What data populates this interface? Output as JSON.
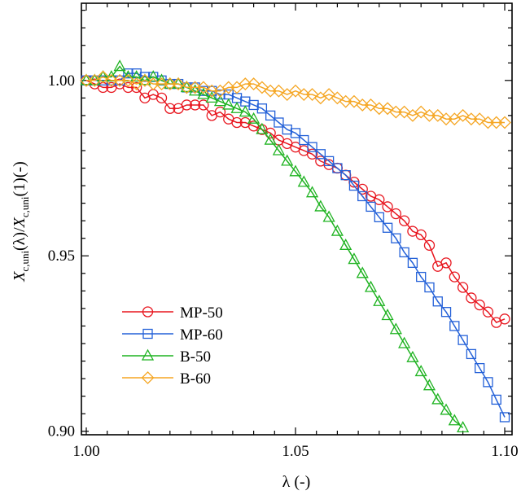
{
  "chart_data": {
    "type": "line",
    "title": "",
    "xlabel": "λ (-)",
    "ylabel": {
      "X1": "X",
      "sub1": "c,uni",
      "mid": "(λ)/",
      "X2": "X",
      "sub2": "c,uni",
      "tail": "(1)(-)"
    },
    "xlim": [
      1.0,
      1.1
    ],
    "ylim": [
      0.899,
      1.022
    ],
    "xticks": [
      {
        "value": 1.0,
        "label": "1.00"
      },
      {
        "value": 1.05,
        "label": "1.05"
      },
      {
        "value": 1.1,
        "label": "1.10"
      }
    ],
    "yticks": [
      {
        "value": 0.9,
        "label": "0.90"
      },
      {
        "value": 0.95,
        "label": "0.95"
      },
      {
        "value": 1.0,
        "label": "1.00"
      }
    ],
    "legend_position": "lower-left",
    "series": [
      {
        "name": "MP-50",
        "color": "#e8161f",
        "marker": "circle",
        "points": [
          [
            1.0,
            1.0
          ],
          [
            1.002,
            0.999
          ],
          [
            1.004,
            0.998
          ],
          [
            1.006,
            0.998
          ],
          [
            1.008,
            0.999
          ],
          [
            1.01,
            0.998
          ],
          [
            1.012,
            0.998
          ],
          [
            1.014,
            0.995
          ],
          [
            1.016,
            0.996
          ],
          [
            1.018,
            0.995
          ],
          [
            1.02,
            0.992
          ],
          [
            1.022,
            0.992
          ],
          [
            1.024,
            0.993
          ],
          [
            1.026,
            0.993
          ],
          [
            1.028,
            0.993
          ],
          [
            1.03,
            0.99
          ],
          [
            1.032,
            0.991
          ],
          [
            1.034,
            0.989
          ],
          [
            1.036,
            0.988
          ],
          [
            1.038,
            0.988
          ],
          [
            1.04,
            0.987
          ],
          [
            1.042,
            0.986
          ],
          [
            1.044,
            0.985
          ],
          [
            1.046,
            0.983
          ],
          [
            1.048,
            0.982
          ],
          [
            1.05,
            0.981
          ],
          [
            1.052,
            0.98
          ],
          [
            1.054,
            0.979
          ],
          [
            1.056,
            0.977
          ],
          [
            1.058,
            0.976
          ],
          [
            1.06,
            0.975
          ],
          [
            1.062,
            0.973
          ],
          [
            1.064,
            0.971
          ],
          [
            1.066,
            0.969
          ],
          [
            1.068,
            0.967
          ],
          [
            1.07,
            0.966
          ],
          [
            1.072,
            0.964
          ],
          [
            1.074,
            0.962
          ],
          [
            1.076,
            0.96
          ],
          [
            1.078,
            0.957
          ],
          [
            1.08,
            0.956
          ],
          [
            1.082,
            0.953
          ],
          [
            1.084,
            0.947
          ],
          [
            1.086,
            0.948
          ],
          [
            1.088,
            0.944
          ],
          [
            1.09,
            0.941
          ],
          [
            1.092,
            0.938
          ],
          [
            1.094,
            0.936
          ],
          [
            1.096,
            0.934
          ],
          [
            1.098,
            0.931
          ],
          [
            1.1,
            0.932
          ]
        ]
      },
      {
        "name": "MP-60",
        "color": "#2461d8",
        "marker": "square",
        "points": [
          [
            1.0,
            1.0
          ],
          [
            1.002,
            1.0
          ],
          [
            1.004,
            1.0
          ],
          [
            1.006,
            1.0
          ],
          [
            1.008,
            1.0
          ],
          [
            1.01,
            1.002
          ],
          [
            1.012,
            1.002
          ],
          [
            1.014,
            1.001
          ],
          [
            1.016,
            1.001
          ],
          [
            1.018,
            1.0
          ],
          [
            1.02,
            0.999
          ],
          [
            1.022,
            0.999
          ],
          [
            1.024,
            0.998
          ],
          [
            1.026,
            0.998
          ],
          [
            1.028,
            0.997
          ],
          [
            1.03,
            0.997
          ],
          [
            1.032,
            0.996
          ],
          [
            1.034,
            0.996
          ],
          [
            1.036,
            0.995
          ],
          [
            1.038,
            0.994
          ],
          [
            1.04,
            0.993
          ],
          [
            1.042,
            0.992
          ],
          [
            1.044,
            0.99
          ],
          [
            1.046,
            0.988
          ],
          [
            1.048,
            0.986
          ],
          [
            1.05,
            0.985
          ],
          [
            1.052,
            0.983
          ],
          [
            1.054,
            0.981
          ],
          [
            1.056,
            0.979
          ],
          [
            1.058,
            0.977
          ],
          [
            1.06,
            0.975
          ],
          [
            1.062,
            0.973
          ],
          [
            1.064,
            0.97
          ],
          [
            1.066,
            0.967
          ],
          [
            1.068,
            0.964
          ],
          [
            1.07,
            0.961
          ],
          [
            1.072,
            0.958
          ],
          [
            1.074,
            0.955
          ],
          [
            1.076,
            0.951
          ],
          [
            1.078,
            0.948
          ],
          [
            1.08,
            0.944
          ],
          [
            1.082,
            0.941
          ],
          [
            1.084,
            0.937
          ],
          [
            1.086,
            0.934
          ],
          [
            1.088,
            0.93
          ],
          [
            1.09,
            0.926
          ],
          [
            1.092,
            0.922
          ],
          [
            1.094,
            0.918
          ],
          [
            1.096,
            0.914
          ],
          [
            1.098,
            0.909
          ],
          [
            1.1,
            0.904
          ]
        ]
      },
      {
        "name": "B-50",
        "color": "#1fb321",
        "marker": "triangle",
        "points": [
          [
            1.0,
            1.0
          ],
          [
            1.002,
            1.0
          ],
          [
            1.004,
            1.001
          ],
          [
            1.006,
            1.001
          ],
          [
            1.008,
            1.004
          ],
          [
            1.01,
            1.001
          ],
          [
            1.012,
            1.001
          ],
          [
            1.014,
            1.0
          ],
          [
            1.016,
            1.001
          ],
          [
            1.018,
            1.0
          ],
          [
            1.02,
            0.999
          ],
          [
            1.022,
            0.999
          ],
          [
            1.024,
            0.998
          ],
          [
            1.026,
            0.997
          ],
          [
            1.028,
            0.996
          ],
          [
            1.03,
            0.995
          ],
          [
            1.032,
            0.994
          ],
          [
            1.034,
            0.993
          ],
          [
            1.036,
            0.992
          ],
          [
            1.038,
            0.991
          ],
          [
            1.04,
            0.989
          ],
          [
            1.042,
            0.986
          ],
          [
            1.044,
            0.983
          ],
          [
            1.046,
            0.98
          ],
          [
            1.048,
            0.977
          ],
          [
            1.05,
            0.974
          ],
          [
            1.052,
            0.971
          ],
          [
            1.054,
            0.968
          ],
          [
            1.056,
            0.964
          ],
          [
            1.058,
            0.961
          ],
          [
            1.06,
            0.957
          ],
          [
            1.062,
            0.953
          ],
          [
            1.064,
            0.949
          ],
          [
            1.066,
            0.945
          ],
          [
            1.068,
            0.941
          ],
          [
            1.07,
            0.937
          ],
          [
            1.072,
            0.933
          ],
          [
            1.074,
            0.929
          ],
          [
            1.076,
            0.925
          ],
          [
            1.078,
            0.921
          ],
          [
            1.08,
            0.917
          ],
          [
            1.082,
            0.913
          ],
          [
            1.084,
            0.909
          ],
          [
            1.086,
            0.906
          ],
          [
            1.088,
            0.903
          ],
          [
            1.09,
            0.901
          ]
        ]
      },
      {
        "name": "B-60",
        "color": "#f5a623",
        "marker": "diamond",
        "points": [
          [
            1.0,
            1.0
          ],
          [
            1.002,
            1.0
          ],
          [
            1.004,
            1.001
          ],
          [
            1.006,
            1.0
          ],
          [
            1.008,
            1.0
          ],
          [
            1.01,
            1.0
          ],
          [
            1.012,
            0.999
          ],
          [
            1.014,
            1.0
          ],
          [
            1.016,
            0.999
          ],
          [
            1.018,
            0.999
          ],
          [
            1.02,
            0.999
          ],
          [
            1.022,
            0.999
          ],
          [
            1.024,
            0.998
          ],
          [
            1.026,
            0.998
          ],
          [
            1.028,
            0.998
          ],
          [
            1.03,
            0.997
          ],
          [
            1.032,
            0.997
          ],
          [
            1.034,
            0.998
          ],
          [
            1.036,
            0.998
          ],
          [
            1.038,
            0.999
          ],
          [
            1.04,
            0.999
          ],
          [
            1.042,
            0.998
          ],
          [
            1.044,
            0.997
          ],
          [
            1.046,
            0.997
          ],
          [
            1.048,
            0.996
          ],
          [
            1.05,
            0.997
          ],
          [
            1.052,
            0.996
          ],
          [
            1.054,
            0.996
          ],
          [
            1.056,
            0.995
          ],
          [
            1.058,
            0.996
          ],
          [
            1.06,
            0.995
          ],
          [
            1.062,
            0.994
          ],
          [
            1.064,
            0.994
          ],
          [
            1.066,
            0.993
          ],
          [
            1.068,
            0.993
          ],
          [
            1.07,
            0.992
          ],
          [
            1.072,
            0.992
          ],
          [
            1.074,
            0.991
          ],
          [
            1.076,
            0.991
          ],
          [
            1.078,
            0.99
          ],
          [
            1.08,
            0.991
          ],
          [
            1.082,
            0.99
          ],
          [
            1.084,
            0.99
          ],
          [
            1.086,
            0.989
          ],
          [
            1.088,
            0.989
          ],
          [
            1.09,
            0.99
          ],
          [
            1.092,
            0.989
          ],
          [
            1.094,
            0.989
          ],
          [
            1.096,
            0.988
          ],
          [
            1.098,
            0.988
          ],
          [
            1.1,
            0.988
          ]
        ]
      }
    ]
  }
}
